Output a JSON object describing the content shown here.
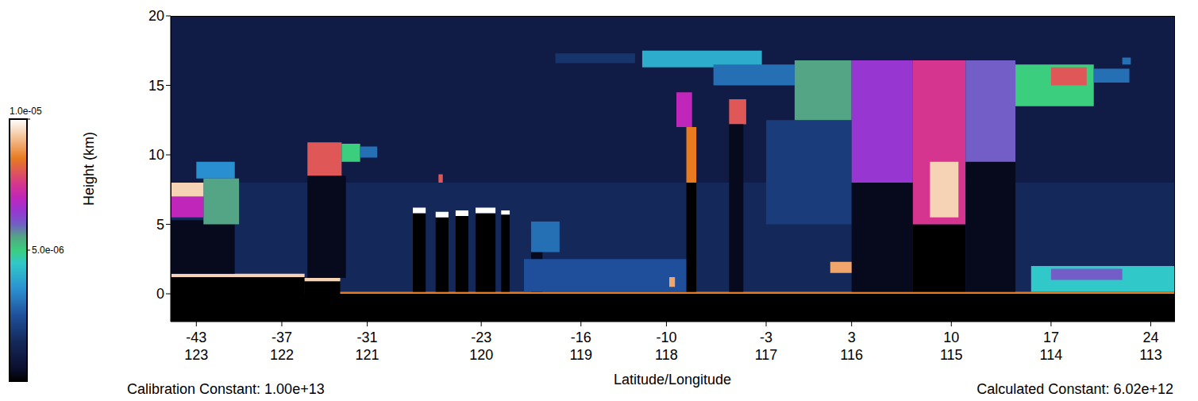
{
  "chart_data": {
    "type": "heatmap",
    "xlabel": "Latitude/Longitude",
    "ylabel": "Height (km)",
    "xlim": [
      -44.8,
      25.7
    ],
    "ylim": [
      -2,
      20
    ],
    "xticks": [
      -43,
      -37,
      -31,
      -23,
      -16,
      -10,
      -3,
      3,
      10,
      17,
      24
    ],
    "xtick_lons": [
      123,
      122,
      121,
      120,
      119,
      118,
      117,
      116,
      115,
      114,
      113
    ],
    "yticks": [
      0,
      5,
      10,
      15,
      20
    ],
    "annotations": [
      "Calibration Constant: 1.00e+13",
      "Calculated Constant: 6.02e+12"
    ],
    "colorbar": {
      "range": [
        0,
        1e-05
      ],
      "ticks": [
        {
          "value": 1e-05,
          "label": "1.0e-05"
        },
        {
          "value": 5e-06,
          "label": "5.0e-06"
        }
      ]
    },
    "cells": [
      {
        "x": [
          -44.8,
          25.7
        ],
        "y": [
          -2,
          20
        ],
        "value": 1e-06
      },
      {
        "x": [
          -44.8,
          25.7
        ],
        "y": [
          0,
          8
        ],
        "value": 1.5e-06
      },
      {
        "x": [
          -44.8,
          25.7
        ],
        "y": [
          -2,
          0
        ],
        "value": 0
      },
      {
        "x": [
          -44.8,
          -35.4
        ],
        "y": [
          0,
          1.3
        ],
        "value": 0
      },
      {
        "x": [
          -35.4,
          -32.9
        ],
        "y": [
          0,
          1.0
        ],
        "value": 0
      },
      {
        "x": [
          -44.8,
          -35.4
        ],
        "y": [
          1.2,
          1.45
        ],
        "value": 9.5e-06
      },
      {
        "x": [
          -35.4,
          -32.9
        ],
        "y": [
          0.9,
          1.15
        ],
        "value": 9.5e-06
      },
      {
        "x": [
          -32.9,
          25.7
        ],
        "y": [
          0,
          0.15
        ],
        "value": 8.5e-06
      },
      {
        "x": [
          -44.8,
          -40.3
        ],
        "y": [
          1.45,
          5.3
        ],
        "value": 3e-07
      },
      {
        "x": [
          -43.0,
          -40.3
        ],
        "y": [
          8.3,
          9.5
        ],
        "value": 3.5e-06
      },
      {
        "x": [
          -42.5,
          -40.0
        ],
        "y": [
          5.0,
          8.3
        ],
        "value": 5.5e-06
      },
      {
        "x": [
          -44.8,
          -42.5
        ],
        "y": [
          5.5,
          7.0
        ],
        "value": 7e-06
      },
      {
        "x": [
          -44.8,
          -42.5
        ],
        "y": [
          7.0,
          8.0
        ],
        "value": 9.5e-06
      },
      {
        "x": [
          -35.2,
          -32.5
        ],
        "y": [
          1.15,
          8.5
        ],
        "value": 3e-07
      },
      {
        "x": [
          -35.2,
          -32.8
        ],
        "y": [
          8.5,
          10.9
        ],
        "value": 8e-06
      },
      {
        "x": [
          -32.8,
          -31.5
        ],
        "y": [
          9.5,
          10.8
        ],
        "value": 5e-06
      },
      {
        "x": [
          -31.5,
          -30.3
        ],
        "y": [
          9.8,
          10.6
        ],
        "value": 3e-06
      },
      {
        "x": [
          -27.8,
          -26.9
        ],
        "y": [
          0.15,
          5.8
        ],
        "value": 0
      },
      {
        "x": [
          -27.8,
          -26.9
        ],
        "y": [
          5.8,
          6.2
        ],
        "value": 1e-05
      },
      {
        "x": [
          -26.0,
          -25.7
        ],
        "y": [
          8.0,
          8.6
        ],
        "value": 8e-06
      },
      {
        "x": [
          -26.2,
          -25.3
        ],
        "y": [
          0.15,
          5.5
        ],
        "value": 0
      },
      {
        "x": [
          -26.2,
          -25.3
        ],
        "y": [
          5.5,
          5.9
        ],
        "value": 1e-05
      },
      {
        "x": [
          -24.8,
          -23.9
        ],
        "y": [
          0.15,
          5.6
        ],
        "value": 0
      },
      {
        "x": [
          -24.8,
          -23.9
        ],
        "y": [
          5.6,
          6.0
        ],
        "value": 1e-05
      },
      {
        "x": [
          -23.4,
          -22.0
        ],
        "y": [
          0.15,
          5.8
        ],
        "value": 0
      },
      {
        "x": [
          -23.4,
          -22.0
        ],
        "y": [
          5.8,
          6.2
        ],
        "value": 1e-05
      },
      {
        "x": [
          -21.6,
          -21.0
        ],
        "y": [
          0.15,
          5.7
        ],
        "value": 0
      },
      {
        "x": [
          -21.6,
          -21.0
        ],
        "y": [
          5.7,
          6.0
        ],
        "value": 1e-05
      },
      {
        "x": [
          -19.5,
          -18.7
        ],
        "y": [
          0.15,
          4.8
        ],
        "value": 3e-07
      },
      {
        "x": [
          -19.5,
          -17.5
        ],
        "y": [
          3.0,
          5.2
        ],
        "value": 3e-06
      },
      {
        "x": [
          -20.0,
          -8.0
        ],
        "y": [
          0.15,
          2.5
        ],
        "value": 2.5e-06
      },
      {
        "x": [
          -9.8,
          -9.4
        ],
        "y": [
          0.5,
          1.2
        ],
        "value": 9e-06
      },
      {
        "x": [
          -17.8,
          -12.2
        ],
        "y": [
          16.6,
          17.3
        ],
        "value": 1.8e-06
      },
      {
        "x": [
          -11.7,
          -3.3
        ],
        "y": [
          16.3,
          17.5
        ],
        "value": 4e-06
      },
      {
        "x": [
          -9.3,
          -8.2
        ],
        "y": [
          12.0,
          14.5
        ],
        "value": 7e-06
      },
      {
        "x": [
          -8.6,
          -7.9
        ],
        "y": [
          8.0,
          12.0
        ],
        "value": 8.5e-06
      },
      {
        "x": [
          -8.6,
          -7.9
        ],
        "y": [
          0.15,
          8.0
        ],
        "value": 0
      },
      {
        "x": [
          -5.6,
          -4.4
        ],
        "y": [
          12.2,
          14.0
        ],
        "value": 8e-06
      },
      {
        "x": [
          -5.6,
          -4.6
        ],
        "y": [
          0.15,
          12.2
        ],
        "value": 3e-07
      },
      {
        "x": [
          -6.7,
          -1.0
        ],
        "y": [
          15.0,
          16.5
        ],
        "value": 3e-06
      },
      {
        "x": [
          -3.0,
          3.0
        ],
        "y": [
          5.0,
          12.5
        ],
        "value": 2e-06
      },
      {
        "x": [
          -1.0,
          3.0
        ],
        "y": [
          12.5,
          16.8
        ],
        "value": 5.5e-06
      },
      {
        "x": [
          3.0,
          7.3
        ],
        "y": [
          0.15,
          8.0
        ],
        "value": 3e-07
      },
      {
        "x": [
          3.0,
          7.3
        ],
        "y": [
          8.0,
          16.8
        ],
        "value": 6.5e-06
      },
      {
        "x": [
          1.5,
          3.0
        ],
        "y": [
          1.5,
          2.3
        ],
        "value": 9e-06
      },
      {
        "x": [
          7.3,
          11.0
        ],
        "y": [
          0.15,
          5.0
        ],
        "value": 0
      },
      {
        "x": [
          7.3,
          11.0
        ],
        "y": [
          5.0,
          16.8
        ],
        "value": 7.5e-06
      },
      {
        "x": [
          8.5,
          10.5
        ],
        "y": [
          5.5,
          9.5
        ],
        "value": 9.5e-06
      },
      {
        "x": [
          11.0,
          14.5
        ],
        "y": [
          0.15,
          9.5
        ],
        "value": 3e-07
      },
      {
        "x": [
          11.0,
          14.5
        ],
        "y": [
          9.5,
          16.8
        ],
        "value": 6e-06
      },
      {
        "x": [
          14.5,
          20.0
        ],
        "y": [
          13.5,
          16.5
        ],
        "value": 5e-06
      },
      {
        "x": [
          17.0,
          19.5
        ],
        "y": [
          15.0,
          16.3
        ],
        "value": 8e-06
      },
      {
        "x": [
          20.0,
          22.5
        ],
        "y": [
          15.2,
          16.2
        ],
        "value": 3e-06
      },
      {
        "x": [
          22.0,
          22.6
        ],
        "y": [
          16.5,
          17.0
        ],
        "value": 3e-06
      },
      {
        "x": [
          15.6,
          25.7
        ],
        "y": [
          0.15,
          2.0
        ],
        "value": 4.5e-06
      },
      {
        "x": [
          17.0,
          22.0
        ],
        "y": [
          1.0,
          1.8
        ],
        "value": 6e-06
      }
    ]
  }
}
